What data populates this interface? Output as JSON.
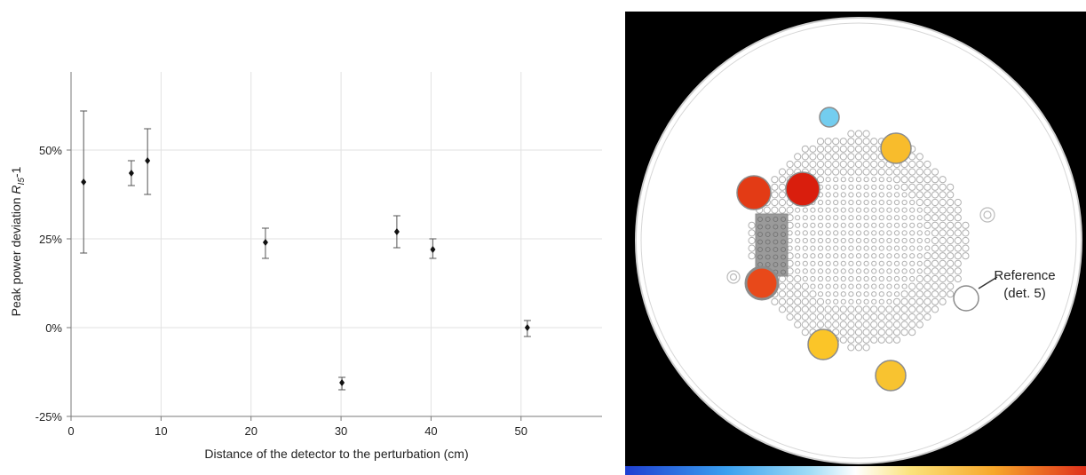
{
  "chart_data": {
    "type": "scatter",
    "xlabel": "Distance of the detector to the perturbation (cm)",
    "ylabel": "Peak power deviation R_I5-1",
    "xlim": [
      0,
      59
    ],
    "ylim": [
      -25,
      72
    ],
    "xticks": [
      0,
      10,
      20,
      30,
      40,
      50
    ],
    "yticks": [
      {
        "value": -25,
        "label": "-25%"
      },
      {
        "value": 0,
        "label": "0%"
      },
      {
        "value": 25,
        "label": "25%"
      },
      {
        "value": 50,
        "label": "50%"
      }
    ],
    "grid": true,
    "points": [
      {
        "x": 1.4,
        "y": 41,
        "err_low": 21,
        "err_high": 61
      },
      {
        "x": 6.7,
        "y": 43.5,
        "err_low": 40,
        "err_high": 47
      },
      {
        "x": 8.5,
        "y": 47,
        "err_low": 37.5,
        "err_high": 56
      },
      {
        "x": 21.6,
        "y": 24,
        "err_low": 19.5,
        "err_high": 28
      },
      {
        "x": 30.1,
        "y": -15.5,
        "err_low": -17.5,
        "err_high": -14
      },
      {
        "x": 36.2,
        "y": 27,
        "err_low": 22.5,
        "err_high": 31.5
      },
      {
        "x": 40.2,
        "y": 22,
        "err_low": 19.5,
        "err_high": 25
      },
      {
        "x": 50.7,
        "y": 0,
        "err_low": -2.5,
        "err_high": 2
      }
    ]
  },
  "core_map": {
    "background": "#000000",
    "colorbar": [
      "#1f3fd1",
      "#3aa0ef",
      "#9edcf6",
      "#ffffff",
      "#fbe27a",
      "#f7a72a",
      "#e0301c"
    ],
    "detectors": [
      {
        "color": "#73cdef"
      },
      {
        "color": "#f8bc2c"
      },
      {
        "color": "#e33b15"
      },
      {
        "color": "#d91e0d"
      },
      {
        "color": "#e8491a"
      },
      {
        "color": "#fbc528"
      },
      {
        "color": "#f8c330"
      },
      {
        "color": "#ffffff"
      }
    ],
    "reference_label_line1": "Reference",
    "reference_label_line2": "(det. 5)"
  }
}
